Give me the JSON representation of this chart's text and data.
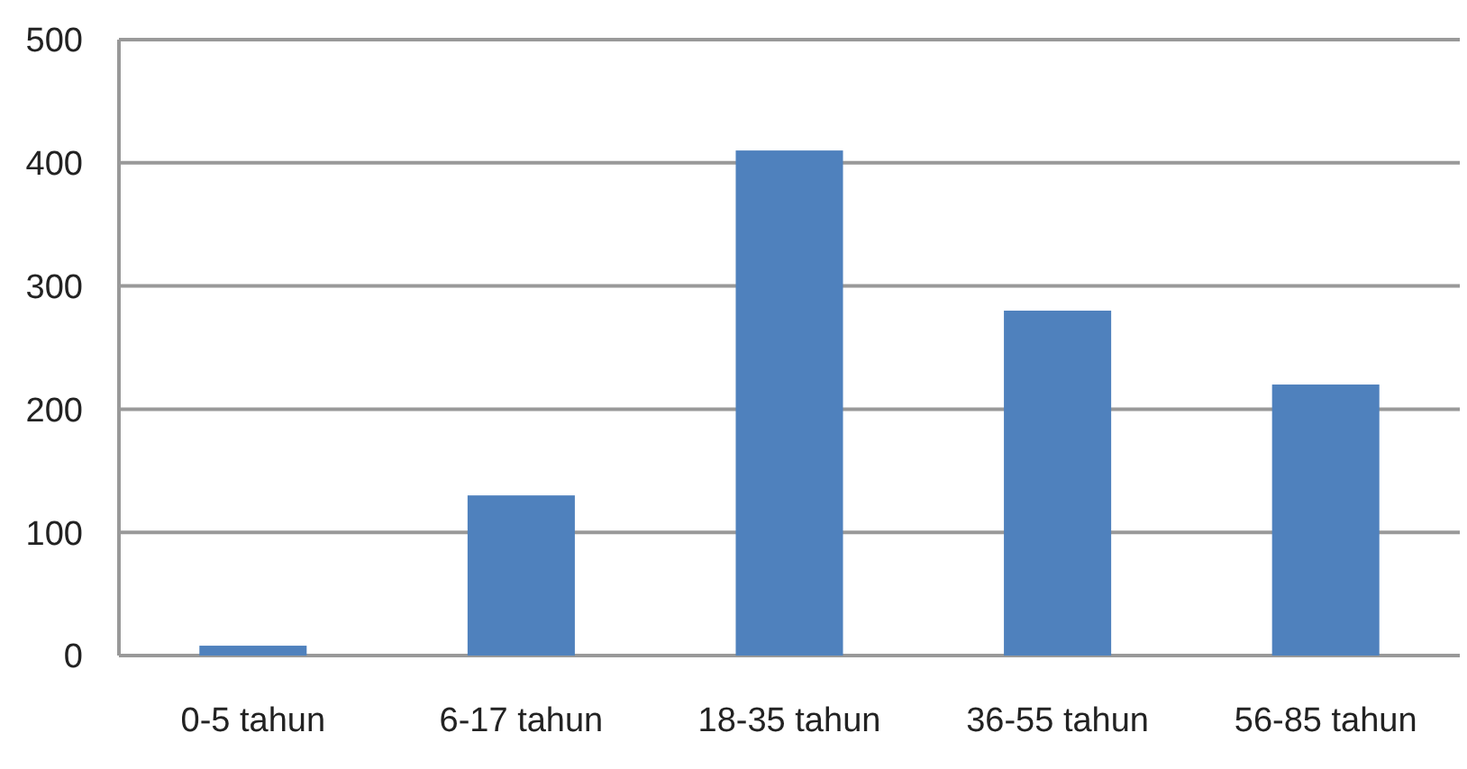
{
  "chart_data": {
    "type": "bar",
    "categories": [
      "0-5 tahun",
      "6-17 tahun",
      "18-35 tahun",
      "36-55 tahun",
      "56-85 tahun"
    ],
    "values": [
      8,
      130,
      410,
      280,
      220
    ],
    "color": "#4f81bd",
    "ylim": [
      0,
      500
    ],
    "yticks": [
      0,
      100,
      200,
      300,
      400,
      500
    ],
    "grid": "y"
  }
}
